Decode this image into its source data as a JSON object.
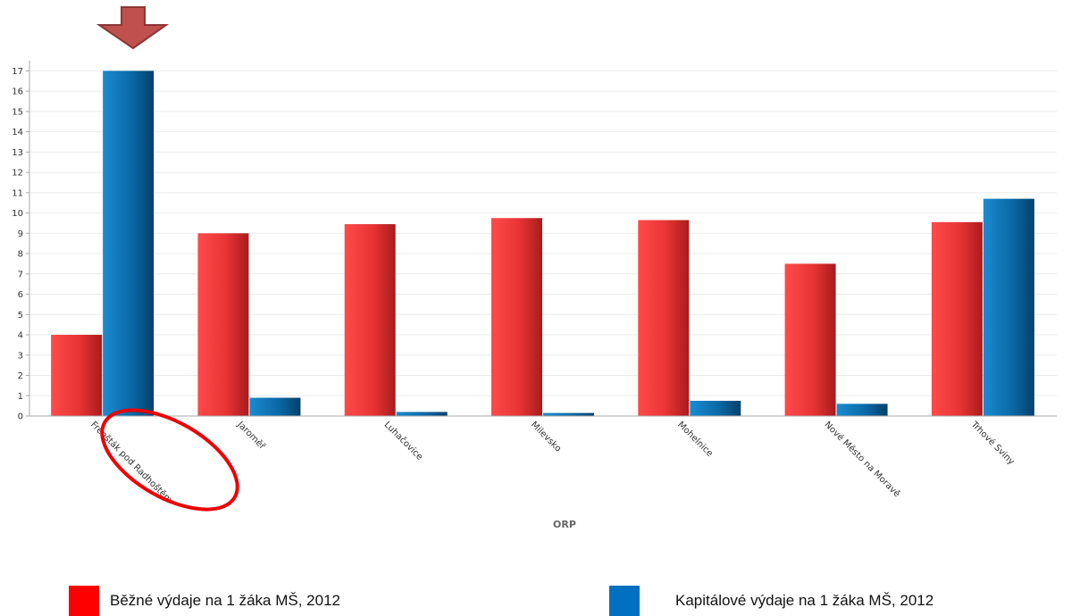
{
  "chart_data": {
    "type": "bar",
    "categories": [
      "Frenšták pod Radhoštěm",
      "Jaroměř",
      "Luhačovice",
      "Milevsko",
      "Mohelnice",
      "Nové Město na Moravě",
      "Trhové Sviny"
    ],
    "series": [
      {
        "name": "Běžné výdaje na 1 žáka MŠ, 2012",
        "values": [
          4.0,
          9.0,
          9.45,
          9.75,
          9.65,
          7.5,
          9.55
        ]
      },
      {
        "name": "Kapitálové výdaje na 1 žáka MŠ, 2012",
        "values": [
          17.0,
          0.9,
          0.2,
          0.15,
          0.75,
          0.6,
          10.7
        ]
      }
    ],
    "xlabel": "ORP",
    "ylabel": "",
    "ylim": [
      0,
      17.5
    ],
    "yticks": [
      0,
      1,
      2,
      3,
      4,
      5,
      6,
      7,
      8,
      9,
      10,
      11,
      12,
      13,
      14,
      15,
      16,
      17
    ],
    "grid": true,
    "legend_position": "bottom",
    "colors": {
      "series_1": "#f03a3a",
      "series_2": "#0a6aa8",
      "legend_1": "#ff0000",
      "legend_2": "#0070c0",
      "arrow": "#c0504d",
      "highlight_ellipse": "#ee0000"
    },
    "annotations": [
      {
        "type": "arrow",
        "icon": "down-arrow-icon",
        "category": "Frenšták pod Radhoštěm"
      },
      {
        "type": "ellipse",
        "icon": "highlight-ellipse",
        "category": "Frenšták pod Radhoštěm"
      }
    ]
  }
}
